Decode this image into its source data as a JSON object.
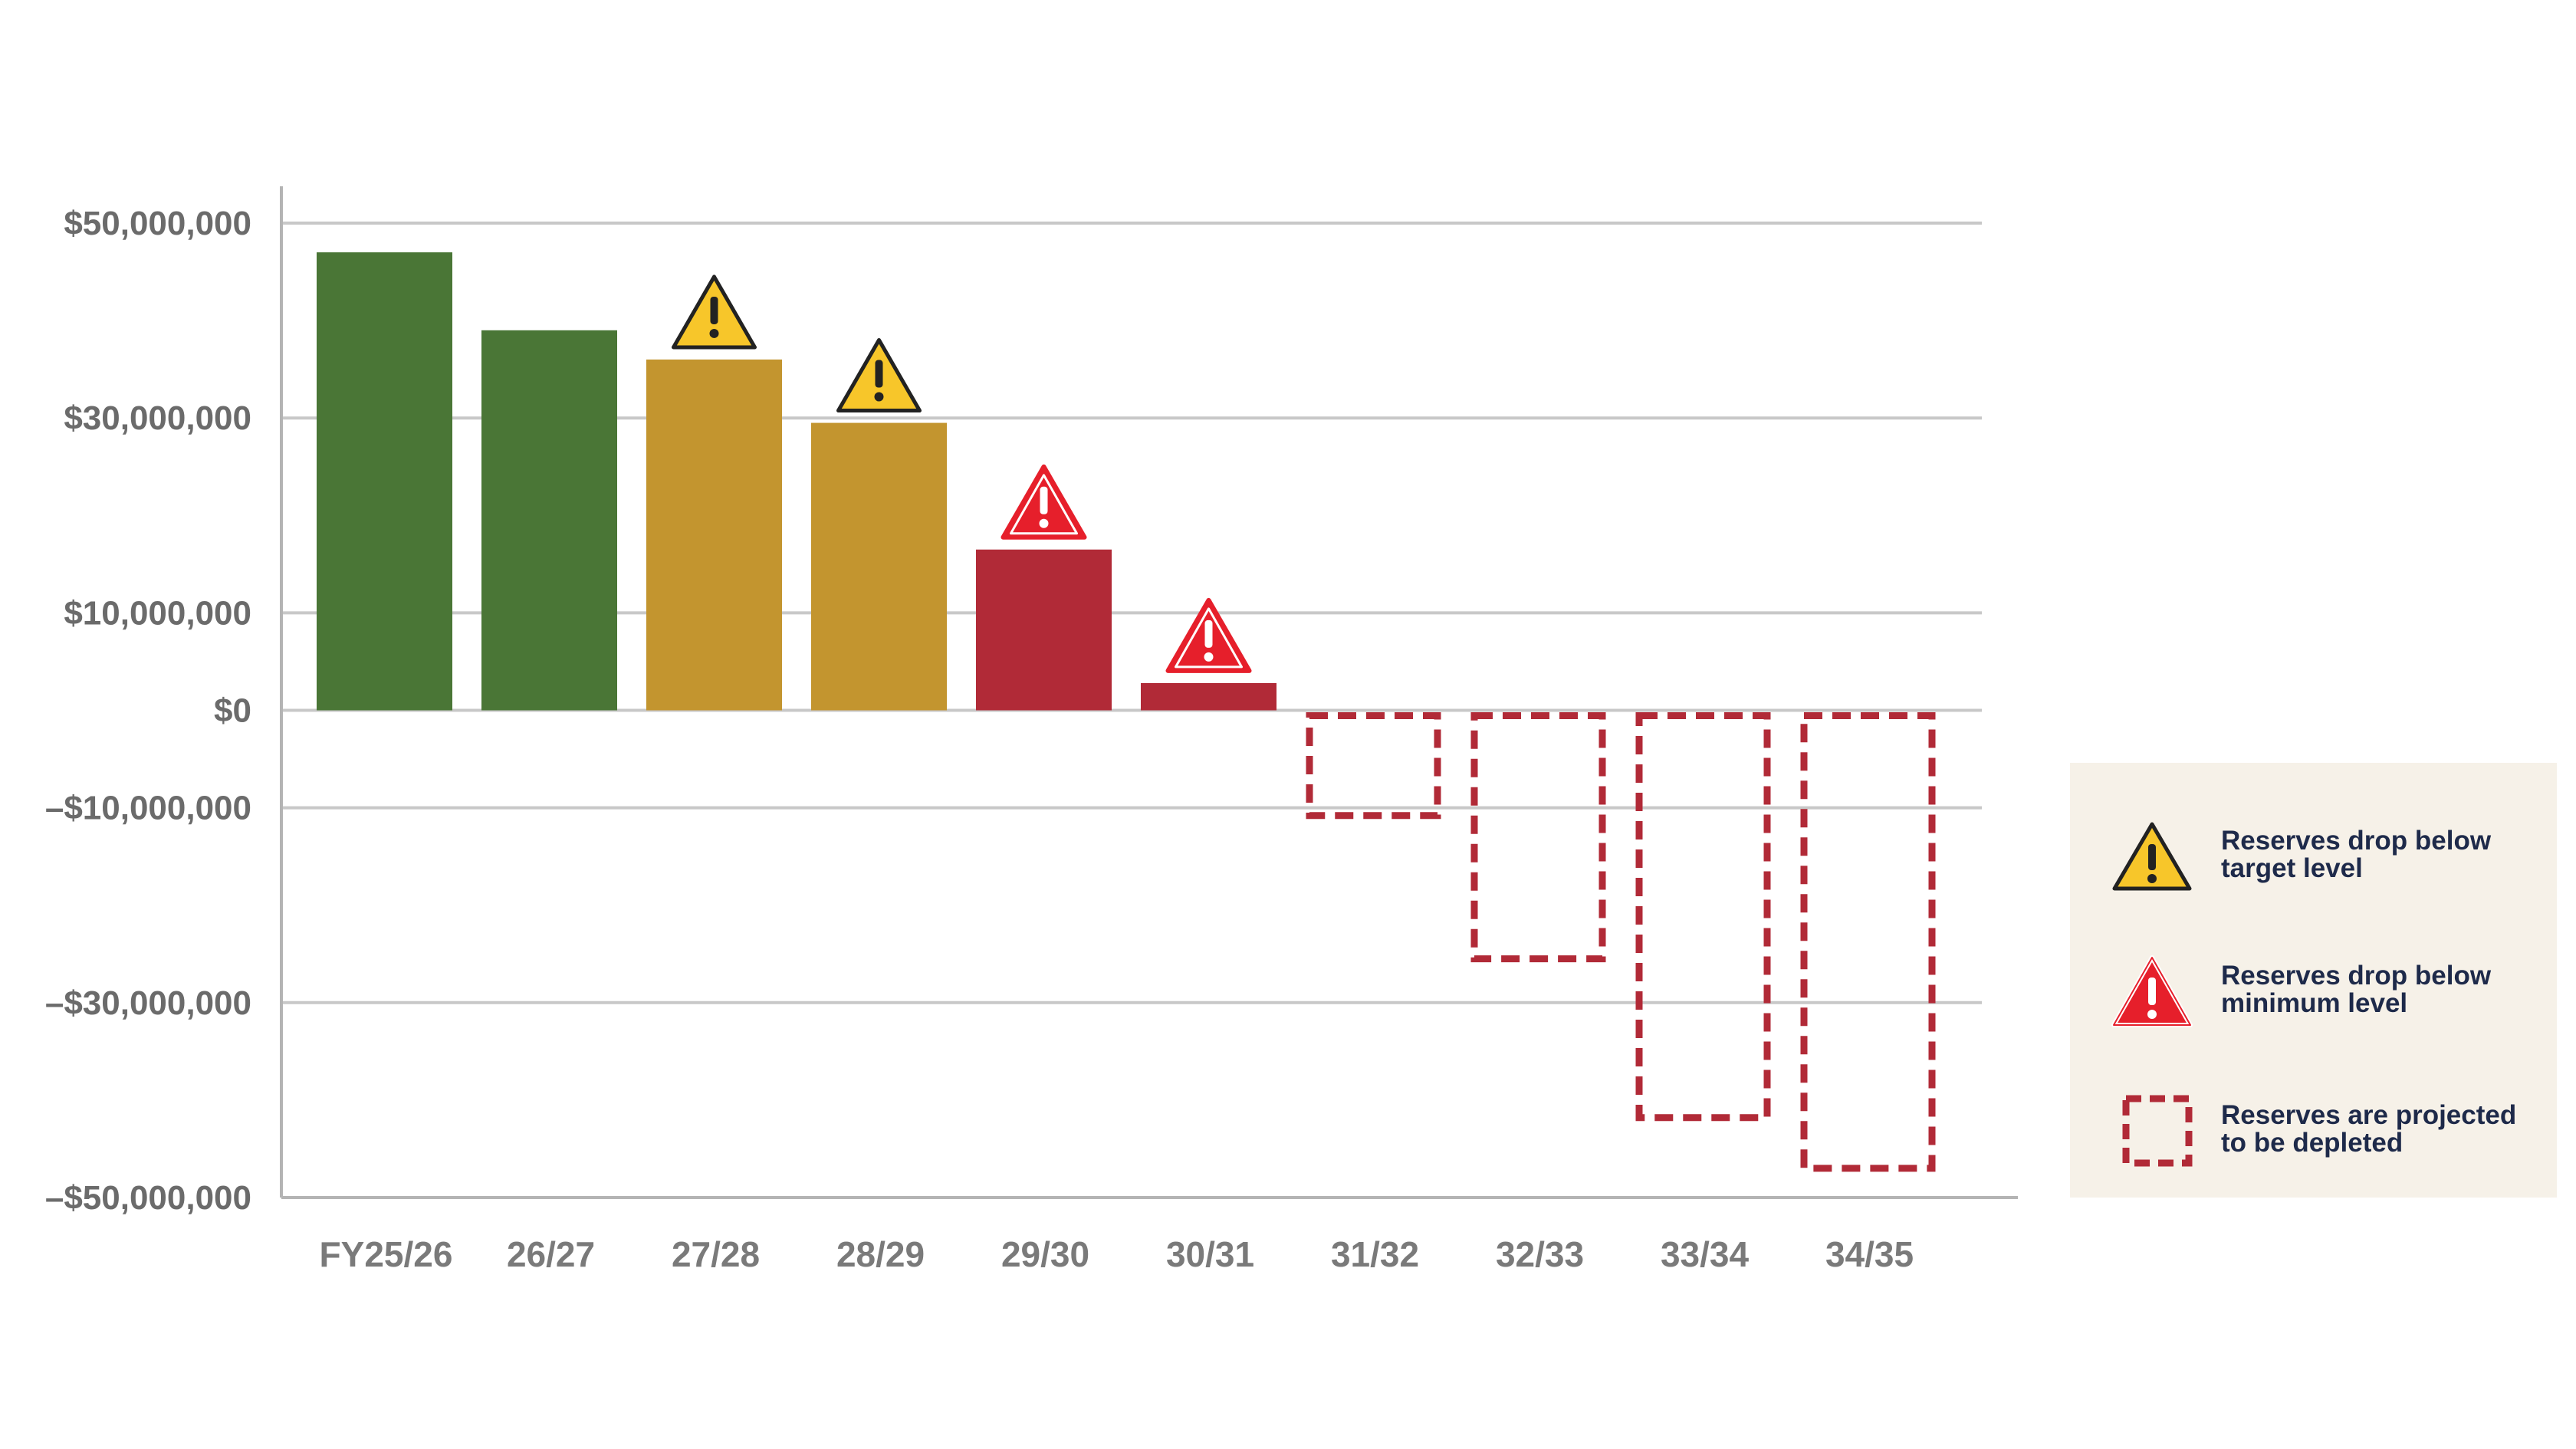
{
  "chart_data": {
    "type": "bar",
    "categories": [
      "FY25/26",
      "26/27",
      "27/28",
      "28/29",
      "29/30",
      "30/31",
      "31/32",
      "32/33",
      "33/34",
      "34/35"
    ],
    "values": [
      47000000,
      39000000,
      36000000,
      29500000,
      16500000,
      2800000,
      -10800000,
      -25500000,
      -41800000,
      -47000000
    ],
    "status": [
      "ok",
      "ok",
      "below-target",
      "below-target",
      "below-minimum",
      "below-minimum",
      "depleted",
      "depleted",
      "depleted",
      "depleted"
    ],
    "yticks": [
      50000000,
      30000000,
      10000000,
      0,
      -10000000,
      -30000000,
      -50000000
    ],
    "ytick_labels": [
      "$50,000,000",
      "$30,000,000",
      "$10,000,000",
      "$0",
      "–$10,000,000",
      "–$30,000,000",
      "–$50,000,000"
    ],
    "ylim": [
      -50000000,
      50000000
    ],
    "grid": true,
    "legend_position": "right",
    "colors": {
      "ok": "#4a7636",
      "below-target": "#c3952f",
      "below-minimum": "#b12a37",
      "depleted": "#b12a37",
      "warning_yellow": "#f7c62a",
      "warning_red": "#e61f2b",
      "grid": "#c8c8c8",
      "axis": "#b4b4b4"
    }
  },
  "legend": {
    "items": [
      {
        "icon": "warning-yellow-icon",
        "label": "Reserves drop below target level"
      },
      {
        "icon": "warning-red-icon",
        "label": "Reserves drop below minimum level"
      },
      {
        "icon": "dashed-box-icon",
        "label": "Reserves are projected to be depleted"
      }
    ]
  }
}
